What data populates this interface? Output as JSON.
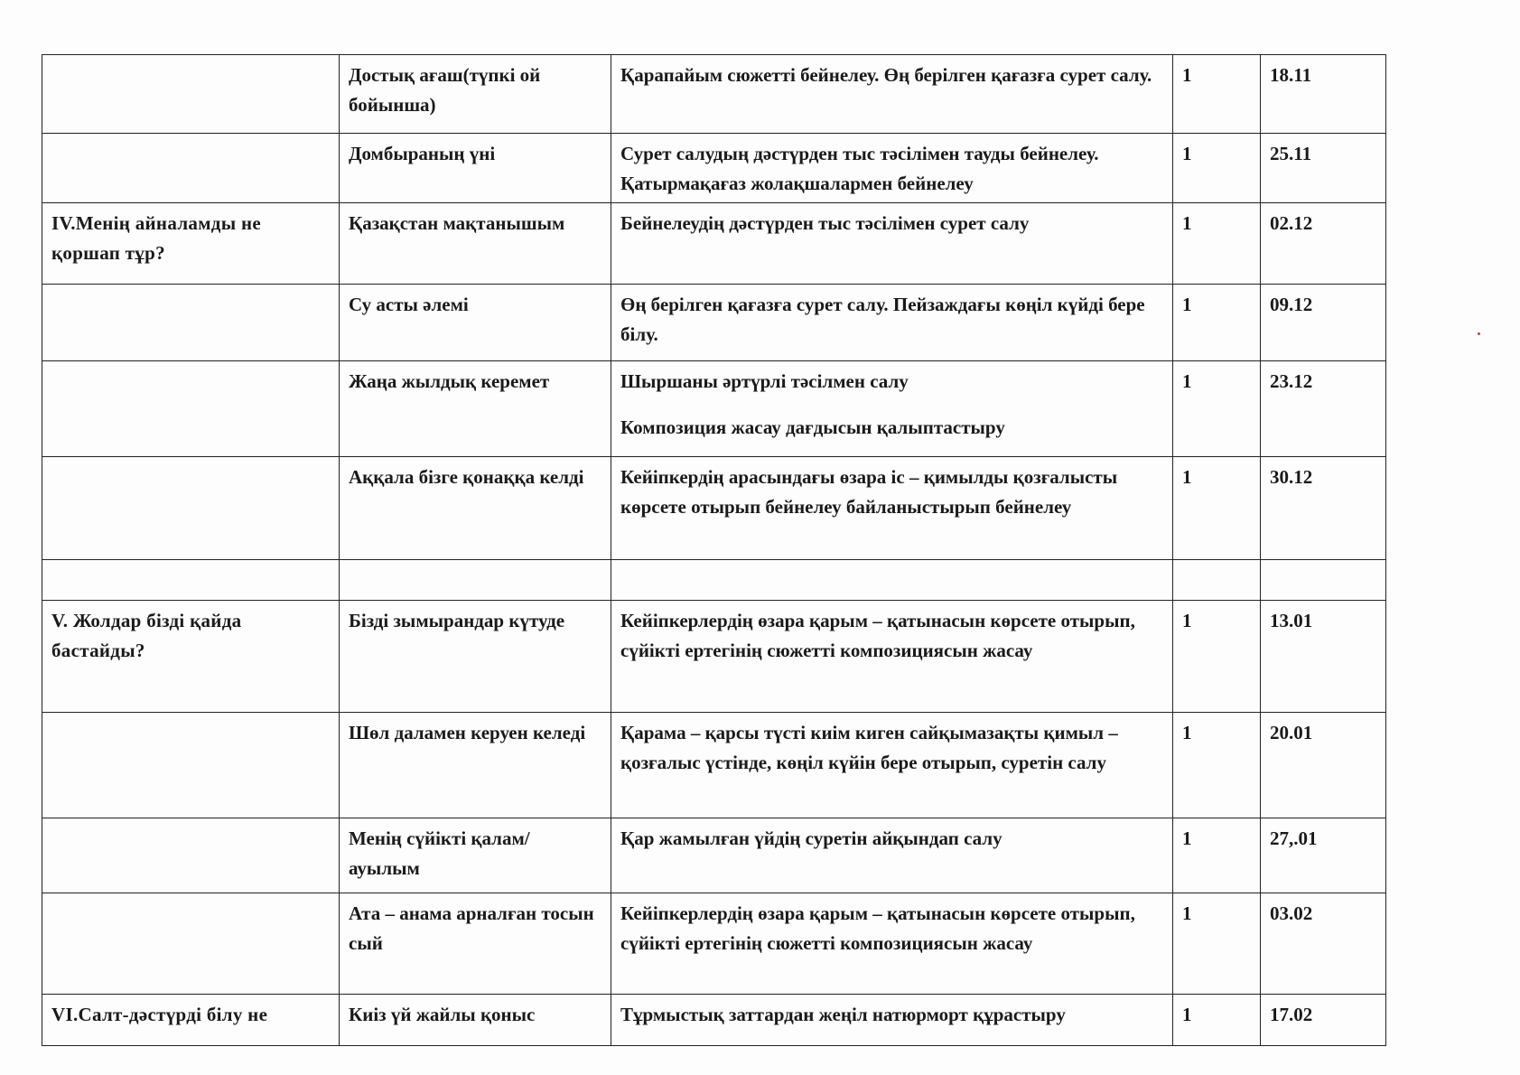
{
  "rows": [
    {
      "section": "",
      "topic": "Достық ағаш(түпкі ой бойынша)",
      "objective": "Қарапайым сюжетті бейнелеу. Өң берілген қағазға сурет салу.",
      "hours": "1",
      "date": "18.11"
    },
    {
      "section": "",
      "topic": "Домбыраның үні",
      "objective": "Сурет салудың дәстүрден тыс тәсілімен тауды бейнелеу. Қатырмақағаз жолақшалармен бейнелеу",
      "hours": "1",
      "date": "25.11"
    },
    {
      "section": "IV.Менің айналамды не қоршап тұр?",
      "topic": "Қазақстан мақтанышым",
      "objective": "Бейнелеудің дәстүрден тыс тәсілімен сурет салу",
      "hours": "1",
      "date": "02.12"
    },
    {
      "section": "",
      "topic": "Су асты әлемі",
      "objective": "Өң берілген қағазға сурет салу. Пейзаждағы көңіл күйді бере білу.",
      "hours": "1",
      "date": "09.12"
    },
    {
      "section": "",
      "topic": "Жаңа жылдық керемет",
      "objective": "Шыршаны әртүрлі тәсілмен салу",
      "objective_2": "Композиция жасау дағдысын қалыптастыру",
      "hours": "1",
      "date": "23.12"
    },
    {
      "section": "",
      "topic": "Аққала бізге қонаққа келді",
      "objective": "Кейіпкердің арасындағы өзара іс – қимылды қозғалысты көрсете отырып бейнелеу байланыстырып бейнелеу",
      "hours": "1",
      "date": "30.12"
    },
    {
      "section": "",
      "topic": "",
      "objective": "",
      "hours": "",
      "date": ""
    },
    {
      "section": "V. Жолдар бізді қайда бастайды?",
      "topic": "Бізді зымырандар күтуде",
      "objective": "Кейіпкерлердің өзара қарым – қатынасын көрсете отырып, сүйікті ертегінің сюжетті композициясын жасау",
      "hours": "1",
      "date": "13.01"
    },
    {
      "section": "",
      "topic": "Шөл даламен керуен келеді",
      "objective": "Қарама – қарсы түсті киім киген сайқымазақты қимыл – қозғалыс үстінде, көңіл күйін бере отырып, суретін салу",
      "hours": "1",
      "date": "20.01"
    },
    {
      "section": "",
      "topic": "Менің сүйікті қалам/ ауылым",
      "objective": "Қар жамылған үйдің суретін айқындап салу",
      "hours": "1",
      "date": "27,.01"
    },
    {
      "section": "",
      "topic": "Ата – анама арналған тосын сый",
      "objective": "Кейіпкерлердің өзара қарым – қатынасын көрсете отырып, сүйікті ертегінің сюжетті композициясын жасау",
      "hours": "1",
      "date": "03.02"
    },
    {
      "section": "VI.Салт-дәстүрді білу не",
      "topic": "Киіз үй жайлы қоныс",
      "objective": "Тұрмыстық заттардан жеңіл натюрморт құрастыру",
      "hours": "1",
      "date": "17.02"
    }
  ]
}
